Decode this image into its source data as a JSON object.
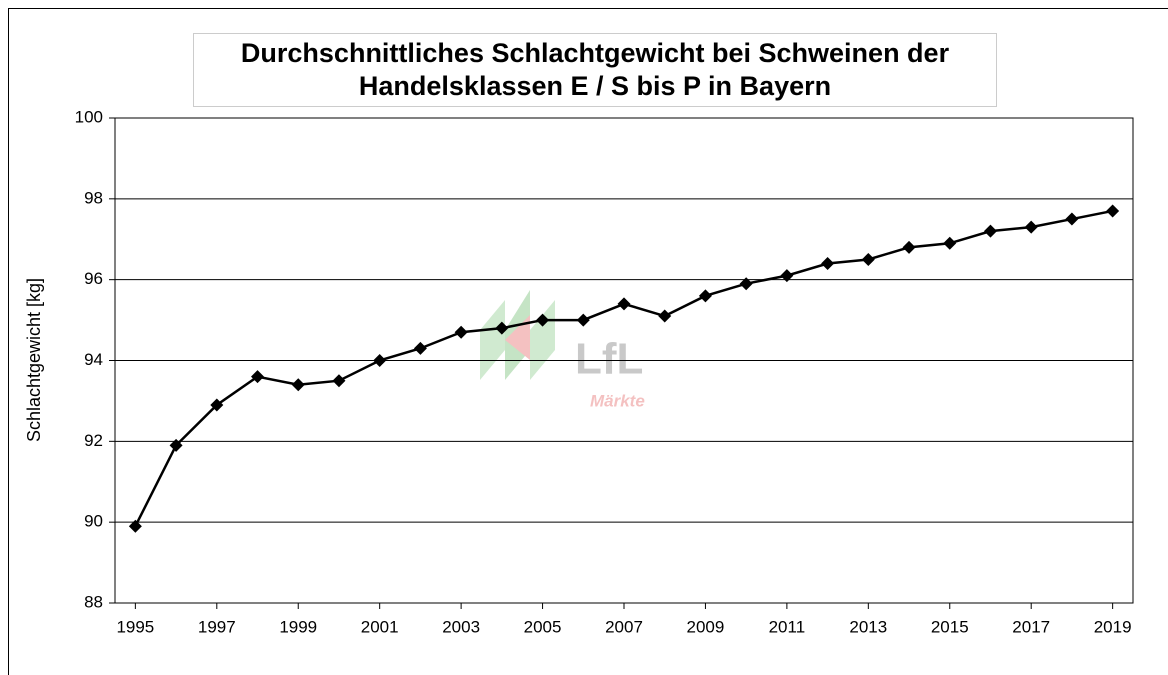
{
  "chart_data": {
    "type": "line",
    "title": [
      "Durchschnittliches Schlachtgewicht bei Schweinen der",
      "Handelsklassen E / S bis P in Bayern"
    ],
    "y_label": "Schlachtgewicht [kg]",
    "watermark": {
      "logo": "LfL",
      "sub": "Märkte"
    },
    "x": [
      1995,
      1996,
      1997,
      1998,
      1999,
      2000,
      2001,
      2002,
      2003,
      2004,
      2005,
      2006,
      2007,
      2008,
      2009,
      2010,
      2011,
      2012,
      2013,
      2014,
      2015,
      2016,
      2017,
      2018,
      2019
    ],
    "series": [
      {
        "color": "#000000",
        "values": [
          89.9,
          91.9,
          92.9,
          93.6,
          93.4,
          93.5,
          94.0,
          94.3,
          94.7,
          94.8,
          95.0,
          95.0,
          95.4,
          95.1,
          95.6,
          95.9,
          96.1,
          96.4,
          96.5,
          96.8,
          96.9,
          97.2,
          97.3,
          97.5,
          97.7
        ]
      }
    ],
    "xlim": [
      1994.5,
      2019.5
    ],
    "xticks": [
      1995,
      1997,
      1999,
      2001,
      2003,
      2005,
      2007,
      2009,
      2011,
      2013,
      2015,
      2017,
      2019
    ],
    "ylim": [
      88,
      100
    ],
    "yticks": [
      88,
      90,
      92,
      94,
      96,
      98,
      100
    ],
    "grid": true
  }
}
